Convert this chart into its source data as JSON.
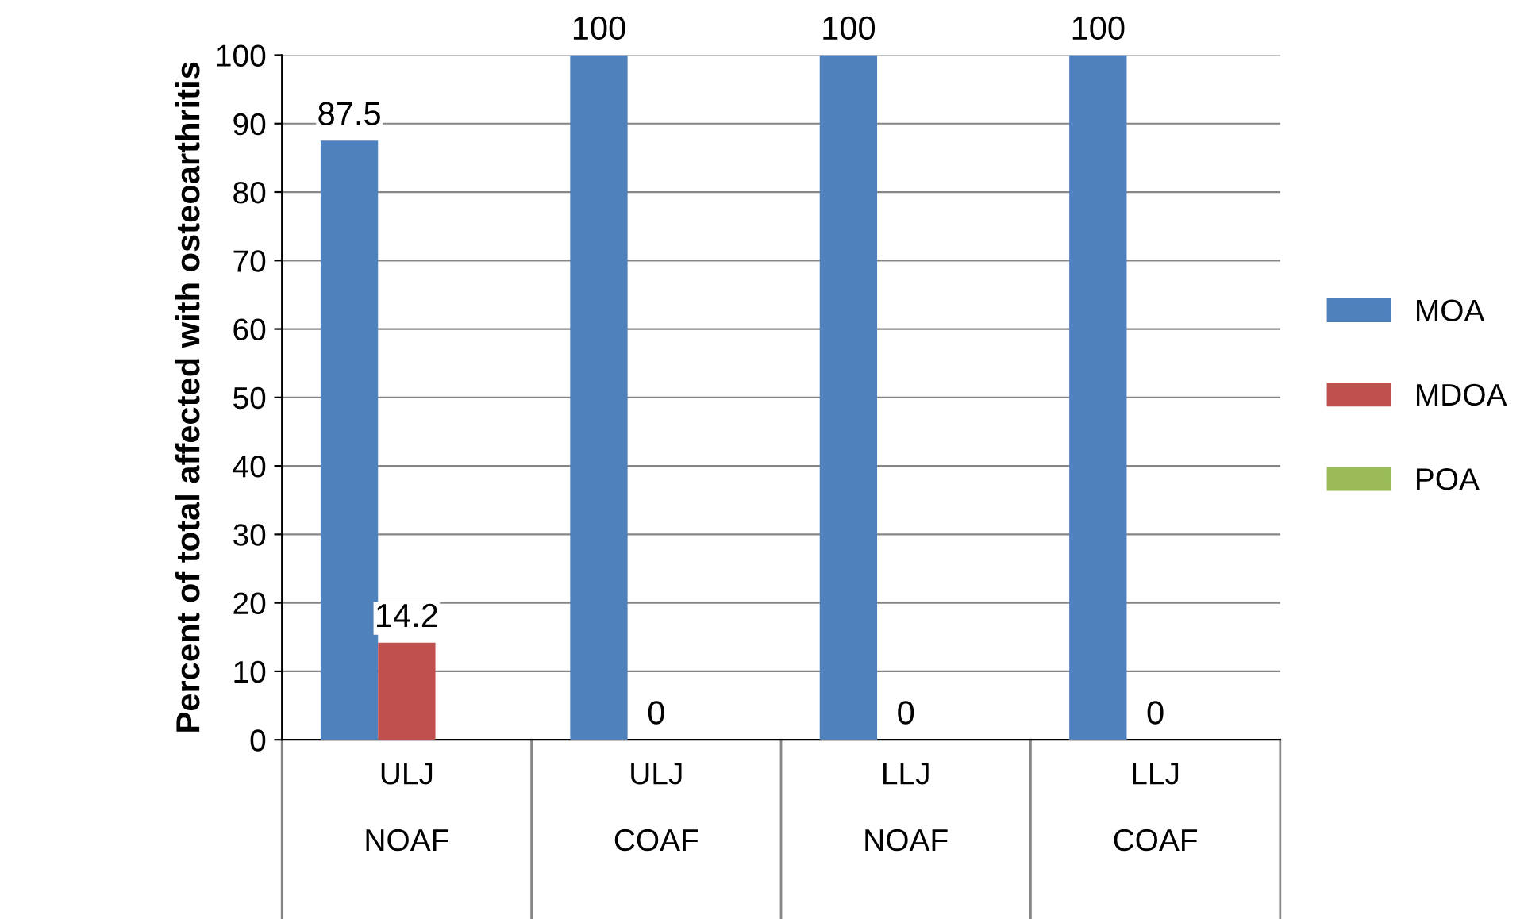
{
  "chart_data": {
    "type": "bar",
    "ylabel": "Percent of total affected with osteoarthritis",
    "categories": [
      "ULJ\n\nNOAF",
      "ULJ\n\nCOAF",
      "LLJ\n\nNOAF",
      "LLJ\n\nCOAF"
    ],
    "series": [
      {
        "name": "MOA",
        "color": "#4f81bd",
        "values": [
          87.5,
          100,
          100,
          100
        ],
        "value_labels": [
          "87.5",
          "100",
          "100",
          "100"
        ]
      },
      {
        "name": "MDOA",
        "color": "#c0504d",
        "values": [
          14.2,
          0,
          0,
          0
        ],
        "value_labels": [
          "14.2",
          "0",
          "0",
          "0"
        ]
      },
      {
        "name": "POA",
        "color": "#9bbb59",
        "values": [
          null,
          null,
          null,
          null
        ]
      }
    ],
    "ylim": [
      0,
      100
    ],
    "yticks": [
      0,
      10,
      20,
      30,
      40,
      50,
      60,
      70,
      80,
      90,
      100
    ],
    "grid": "y",
    "legend": "right"
  }
}
